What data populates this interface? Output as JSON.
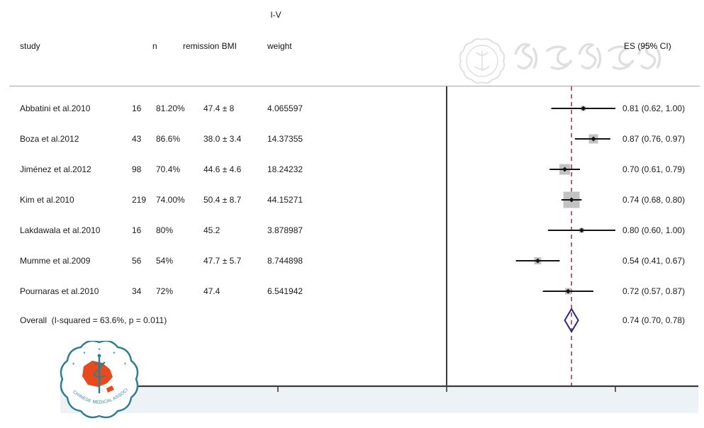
{
  "figure": {
    "effect_model_label": "I-V",
    "columns": {
      "study": "study",
      "n": "n",
      "remission_bmi": "remission BMI",
      "weight": "weight",
      "es": "ES (95% CI)"
    },
    "watermark_text": "中华医学会",
    "logo_text": "CHINESE MEDICAL ASSOCIATION"
  },
  "chart_data": {
    "type": "forest",
    "title": "",
    "xlabel": "",
    "x_ticks": [
      "-1",
      "0",
      "1"
    ],
    "x_tick_values": [
      -1,
      0,
      1
    ],
    "null_line_x": 0,
    "overall_line_x": 0.74,
    "studies": [
      {
        "name": "Abbatini et al.2010",
        "n": "16",
        "remission": "81.20%",
        "bmi": "47.4 ± 8",
        "weight": "4.065597",
        "es": 0.81,
        "ci_low": 0.62,
        "ci_high": 1.0,
        "es_label": "0.81 (0.62, 1.00)"
      },
      {
        "name": "Boza et al.2012",
        "n": "43",
        "remission": "86.6%",
        "bmi": "38.0 ± 3.4",
        "weight": "14.37355",
        "es": 0.87,
        "ci_low": 0.76,
        "ci_high": 0.97,
        "es_label": "0.87 (0.76, 0.97)"
      },
      {
        "name": "Jiménez et al.2012",
        "n": "98",
        "remission": "70.4%",
        "bmi": "44.6 ± 4.6",
        "weight": "18.24232",
        "es": 0.7,
        "ci_low": 0.61,
        "ci_high": 0.79,
        "es_label": "0.70 (0.61, 0.79)"
      },
      {
        "name": "Kim et al.2010",
        "n": "219",
        "remission": "74.00%",
        "bmi": "50.4 ± 8.7",
        "weight": "44.15271",
        "es": 0.74,
        "ci_low": 0.68,
        "ci_high": 0.8,
        "es_label": "0.74 (0.68, 0.80)"
      },
      {
        "name": "Lakdawala et al.2010",
        "n": "16",
        "remission": "80%",
        "bmi": "45.2",
        "weight": "3.878987",
        "es": 0.8,
        "ci_low": 0.6,
        "ci_high": 1.0,
        "es_label": "0.80 (0.60, 1.00)"
      },
      {
        "name": "Mumme et al.2009",
        "n": "56",
        "remission": "54%",
        "bmi": "47.7 ± 5.7",
        "weight": "8.744898",
        "es": 0.54,
        "ci_low": 0.41,
        "ci_high": 0.67,
        "es_label": "0.54 (0.41, 0.67)"
      },
      {
        "name": "Pournaras et al.2010",
        "n": "34",
        "remission": "72%",
        "bmi": "47.4",
        "weight": "6.541942",
        "es": 0.72,
        "ci_low": 0.57,
        "ci_high": 0.87,
        "es_label": "0.72 (0.57, 0.87)"
      }
    ],
    "overall": {
      "label": "Overall  (I-squared = 63.6%, p = 0.011)",
      "es": 0.74,
      "ci_low": 0.7,
      "ci_high": 0.78,
      "es_label": "0.74 (0.70, 0.78)"
    },
    "layout": {
      "legend": "none",
      "grid": false,
      "x_range_shown": [
        -1.3,
        1.5
      ]
    },
    "colors": {
      "null_line": "#3b3b3b",
      "axis_line": "#3b3b3b",
      "overall_dashed": "#ab3a4e",
      "ci_line": "#141414",
      "weight_square": "#c2c2c2",
      "diamond": "#282c7e",
      "strip": "#edf2f6",
      "separator": "#a5a5a5",
      "text": "#1b1b1b",
      "logo_teal": "#2e7f92",
      "logo_red": "#e8491d",
      "watermark_gray": "#e0e0e0"
    }
  }
}
